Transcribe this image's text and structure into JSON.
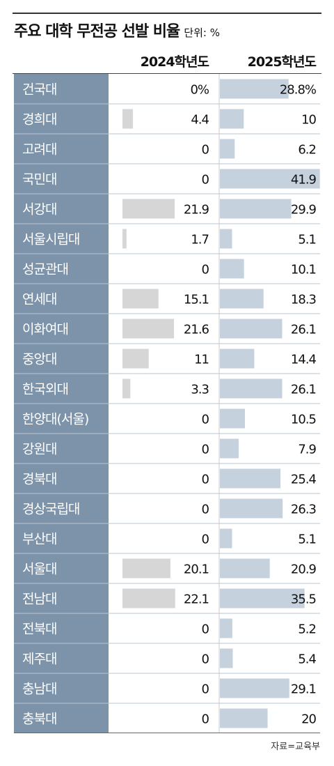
{
  "title": "주요 대학 무전공 선발 비율",
  "unit": "단위: %",
  "source": "자료=교육부",
  "colors": {
    "name_column": "#7d93aa",
    "bar_2024": "#d6d6d6",
    "bar_2025": "#c5d1dc",
    "row_separator": "#b7c4d1",
    "text": "#111111"
  },
  "chart_data": {
    "type": "bar",
    "orientation": "horizontal",
    "categories": [
      "건국대",
      "경희대",
      "고려대",
      "국민대",
      "서강대",
      "서울시립대",
      "성균관대",
      "연세대",
      "이화여대",
      "중앙대",
      "한국외대",
      "한양대(서울)",
      "강원대",
      "경북대",
      "경상국립대",
      "부산대",
      "서울대",
      "전남대",
      "전북대",
      "제주대",
      "충남대",
      "충북대"
    ],
    "series": [
      {
        "name": "2024학년도",
        "values": [
          0,
          4.4,
          0,
          0,
          21.9,
          1.7,
          0,
          15.1,
          21.6,
          11,
          3.3,
          0,
          0,
          0,
          0,
          0,
          20.1,
          22.1,
          0,
          0,
          0,
          0
        ],
        "labels": [
          "0%",
          "4.4",
          "0",
          "0",
          "21.9",
          "1.7",
          "0",
          "15.1",
          "21.6",
          "11",
          "3.3",
          "0",
          "0",
          "0",
          "0",
          "0",
          "20.1",
          "22.1",
          "0",
          "0",
          "0",
          "0"
        ]
      },
      {
        "name": "2025학년도",
        "values": [
          28.8,
          10,
          6.2,
          41.9,
          29.9,
          5.1,
          10.1,
          18.3,
          26.1,
          14.4,
          26.1,
          10.5,
          7.9,
          25.4,
          26.3,
          5.1,
          20.9,
          35.5,
          5.2,
          5.4,
          29.1,
          20
        ],
        "labels": [
          "28.8%",
          "10",
          "6.2",
          "41.9",
          "29.9",
          "5.1",
          "10.1",
          "18.3",
          "26.1",
          "14.4",
          "26.1",
          "10.5",
          "7.9",
          "25.4",
          "26.3",
          "5.1",
          "20.9",
          "35.5",
          "5.2",
          "5.4",
          "29.1",
          "20"
        ]
      }
    ],
    "xlim": [
      0,
      42
    ],
    "grid": false,
    "legend": "column headers"
  }
}
